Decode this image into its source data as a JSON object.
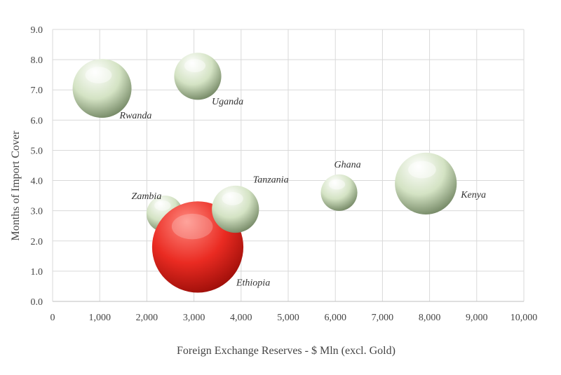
{
  "chart_data": {
    "type": "bubble",
    "title": "",
    "xlabel": "Foreign Exchange Reserves - $ Mln (excl. Gold)",
    "ylabel": "Months of Import Cover",
    "xlim": [
      0,
      10000
    ],
    "ylim": [
      0,
      9
    ],
    "x_ticks": [
      "0",
      "1,000",
      "2,000",
      "3,000",
      "4,000",
      "5,000",
      "6,000",
      "7,000",
      "8,000",
      "9,000",
      "10,000"
    ],
    "y_ticks": [
      "0.0",
      "1.0",
      "2.0",
      "3.0",
      "4.0",
      "5.0",
      "6.0",
      "7.0",
      "8.0",
      "9.0"
    ],
    "grid": true,
    "legend": "none",
    "points": [
      {
        "label": "Rwanda",
        "x": 1050,
        "y": 7.05,
        "size": 1.0,
        "color": "#d4e3c4",
        "highlight": false
      },
      {
        "label": "Uganda",
        "x": 3080,
        "y": 7.45,
        "size": 0.8,
        "color": "#d4e3c4",
        "highlight": false
      },
      {
        "label": "Zambia",
        "x": 2380,
        "y": 2.9,
        "size": 0.62,
        "color": "#d4e3c4",
        "highlight": false
      },
      {
        "label": "Ethiopia",
        "x": 3080,
        "y": 1.8,
        "size": 1.55,
        "color": "#e8231e",
        "highlight": true
      },
      {
        "label": "Tanzania",
        "x": 3880,
        "y": 3.05,
        "size": 0.8,
        "color": "#d4e3c4",
        "highlight": false
      },
      {
        "label": "Ghana",
        "x": 6080,
        "y": 3.6,
        "size": 0.62,
        "color": "#d4e3c4",
        "highlight": false
      },
      {
        "label": "Kenya",
        "x": 7920,
        "y": 3.9,
        "size": 1.05,
        "color": "#d4e3c4",
        "highlight": false
      }
    ]
  }
}
